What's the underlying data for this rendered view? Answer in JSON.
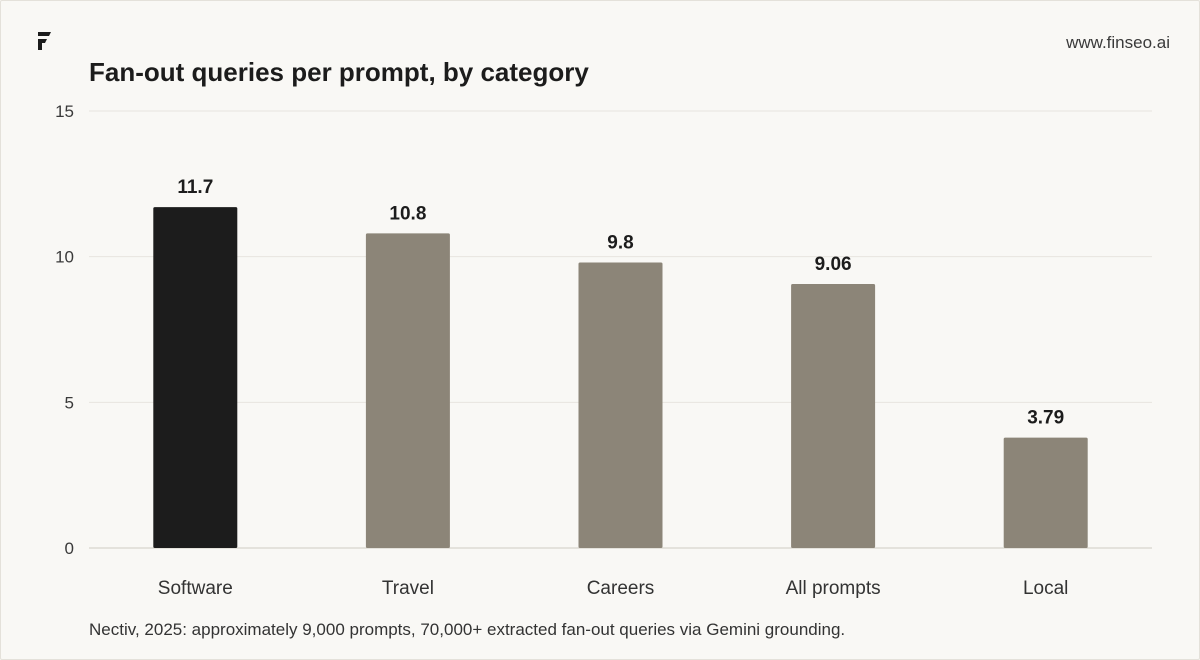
{
  "brand": {
    "site": "www.finseo.ai",
    "logo_icon": "finseo-f-logo-icon"
  },
  "chart_data": {
    "type": "bar",
    "title": "Fan-out queries per prompt, by category",
    "xlabel": "",
    "ylabel": "",
    "categories": [
      "Software",
      "Travel",
      "Careers",
      "All prompts",
      "Local"
    ],
    "values": [
      11.7,
      10.8,
      9.8,
      9.06,
      3.79
    ],
    "value_labels": [
      "11.7",
      "10.8",
      "9.8",
      "9.06",
      "3.79"
    ],
    "ylim": [
      0,
      15
    ],
    "yticks": [
      0,
      5,
      10,
      15
    ],
    "grid": true,
    "colors": {
      "highlight": "#1c1c1c",
      "default": "#8c8578",
      "grid": "#e8e5df",
      "axis": "#cfcbc3"
    },
    "highlight_index": 0
  },
  "footnote": "Nectiv, 2025: approximately 9,000 prompts, 70,000+ extracted fan-out queries via Gemini grounding."
}
